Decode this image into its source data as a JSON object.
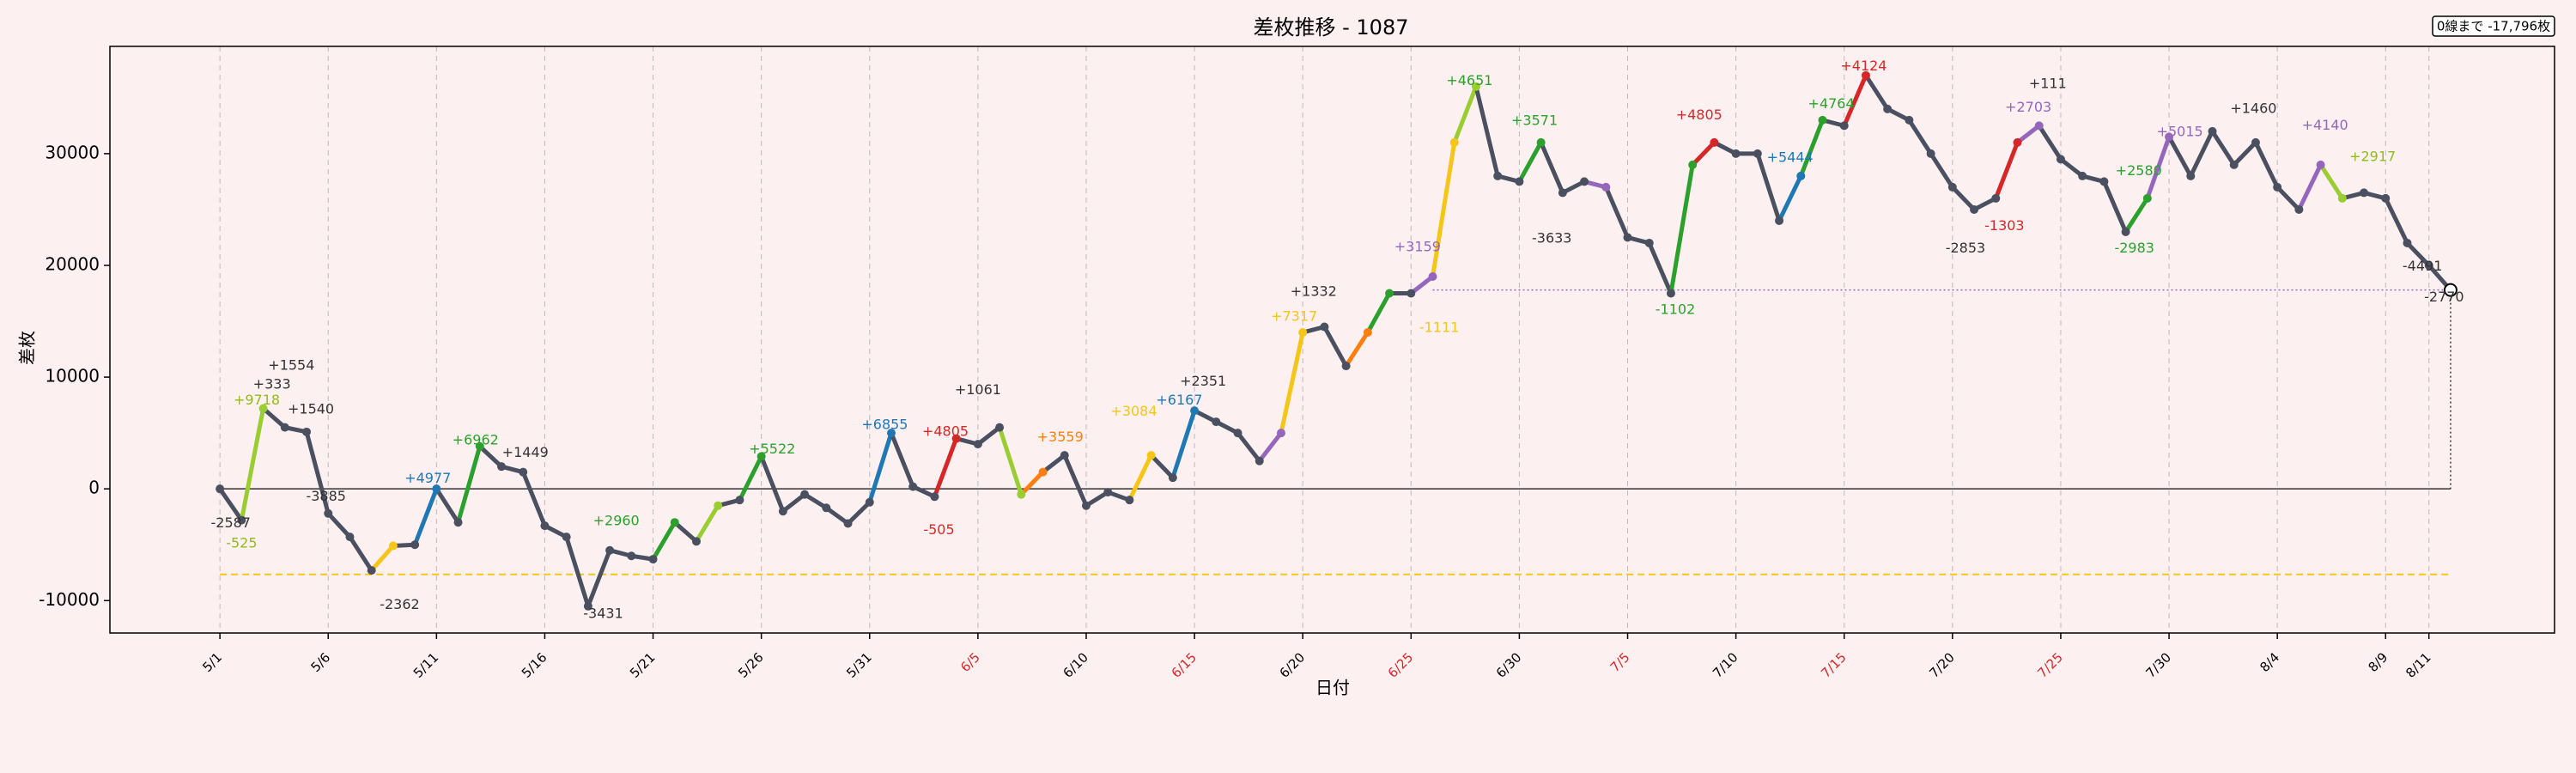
{
  "chart_data": {
    "type": "line",
    "title": "差枚推移 - 1087",
    "xlabel": "日付",
    "ylabel": "差枚",
    "info_box": "0線まで -17,796枚",
    "line_color": "#4a5060",
    "x": [
      0,
      1,
      2,
      3,
      4,
      5,
      6,
      7,
      8,
      9,
      10,
      11,
      12,
      13,
      14,
      15,
      16,
      17,
      18,
      19,
      20,
      21,
      22,
      23,
      24,
      25,
      26,
      27,
      28,
      29,
      30,
      31,
      32,
      33,
      34,
      35,
      36,
      37,
      38,
      39,
      40,
      41,
      42,
      43,
      44,
      45,
      46,
      47,
      48,
      49,
      50,
      51,
      52,
      53,
      54,
      55,
      56,
      57,
      58,
      59,
      60,
      61,
      62,
      63,
      64,
      65,
      66,
      67,
      68,
      69,
      70,
      71,
      72,
      73,
      74,
      75,
      76,
      77,
      78,
      79,
      80,
      81,
      82,
      83,
      84,
      85,
      86,
      87,
      88,
      89,
      90,
      91,
      92,
      93,
      94,
      95,
      96,
      97,
      98,
      99,
      100,
      101,
      102,
      103
    ],
    "values": [
      0,
      -2800,
      7200,
      5500,
      5100,
      -2200,
      -4300,
      -7300,
      -5100,
      -5000,
      0,
      -3000,
      3800,
      2000,
      1500,
      -3300,
      -4300,
      -10500,
      -5500,
      -6000,
      -6300,
      -3000,
      -4700,
      -1500,
      -1000,
      2900,
      -2000,
      -500,
      -1700,
      -3100,
      -1200,
      5000,
      200,
      -700,
      4500,
      4000,
      5500,
      -500,
      1500,
      3000,
      -1500,
      -300,
      -1000,
      3000,
      1000,
      7000,
      6000,
      5000,
      2500,
      5000,
      14000,
      14500,
      11000,
      14000,
      17500,
      17500,
      19000,
      31000,
      36000,
      28000,
      27500,
      31000,
      26500,
      27500,
      27000,
      22500,
      22000,
      17500,
      29000,
      31000,
      30000,
      30000,
      24000,
      28000,
      33000,
      32500,
      37000,
      34000,
      33000,
      30000,
      27000,
      25000,
      26000,
      31000,
      32500,
      29500,
      28000,
      27500,
      23000,
      26000,
      31500,
      28000,
      32000,
      29000,
      31000,
      27000,
      25000,
      29000,
      26000,
      26500,
      26000,
      22000,
      20000,
      17800
    ],
    "segment_colors": [
      null,
      null,
      "#9acd32",
      null,
      null,
      null,
      null,
      null,
      "#f5c518",
      null,
      "#1f77b4",
      null,
      "#2ca02c",
      null,
      null,
      null,
      null,
      null,
      null,
      null,
      null,
      "#2ca02c",
      null,
      "#9acd32",
      null,
      "#2ca02c",
      null,
      null,
      null,
      null,
      null,
      "#1f77b4",
      null,
      null,
      "#d62728",
      null,
      null,
      "#9acd32",
      "#ff7f0e",
      null,
      null,
      null,
      null,
      "#f5c518",
      null,
      "#1f77b4",
      null,
      null,
      null,
      "#9467bd",
      "#f5c518",
      null,
      null,
      "#ff7f0e",
      "#2ca02c",
      null,
      "#9467bd",
      "#f5c518",
      "#9acd32",
      null,
      null,
      "#2ca02c",
      null,
      null,
      "#9467bd",
      null,
      null,
      null,
      "#2ca02c",
      "#d62728",
      null,
      null,
      null,
      "#1f77b4",
      "#2ca02c",
      null,
      "#d62728",
      null,
      null,
      null,
      null,
      null,
      null,
      "#d62728",
      "#9467bd",
      null,
      null,
      null,
      null,
      "#2ca02c",
      "#9467bd",
      null,
      null,
      null,
      null,
      null,
      null,
      "#9467bd",
      "#9acd32",
      null,
      null,
      null,
      null,
      null
    ],
    "xlim": [
      -5.08,
      107.8
    ],
    "xticks": [
      {
        "value": 0,
        "label": "5/1"
      },
      {
        "value": 5,
        "label": "5/6"
      },
      {
        "value": 10,
        "label": "5/11"
      },
      {
        "value": 15,
        "label": "5/16"
      },
      {
        "value": 20,
        "label": "5/21"
      },
      {
        "value": 25,
        "label": "5/26"
      },
      {
        "value": 30,
        "label": "5/31"
      },
      {
        "value": 35,
        "label": "6/5"
      },
      {
        "value": 40,
        "label": "6/10"
      },
      {
        "value": 45,
        "label": "6/15"
      },
      {
        "value": 50,
        "label": "6/20"
      },
      {
        "value": 55,
        "label": "6/25"
      },
      {
        "value": 60,
        "label": "6/30"
      },
      {
        "value": 65,
        "label": "7/5"
      },
      {
        "value": 70,
        "label": "7/10"
      },
      {
        "value": 75,
        "label": "7/15"
      },
      {
        "value": 80,
        "label": "7/20"
      },
      {
        "value": 85,
        "label": "7/25"
      },
      {
        "value": 90,
        "label": "7/30"
      },
      {
        "value": 95,
        "label": "8/4"
      },
      {
        "value": 100,
        "label": "8/9"
      },
      {
        "value": 102,
        "label": "8/11"
      }
    ],
    "xtick_label_colors": [
      "#000",
      "#000",
      "#000",
      "#000",
      "#000",
      "#000",
      "#000",
      "#d62728",
      "#000",
      "#d62728",
      "#000",
      "#d62728",
      "#000",
      "#d62728",
      "#000",
      "#d62728",
      "#000",
      "#d62728",
      "#000",
      "#000",
      "#000",
      "#000"
    ],
    "ylim": [
      -12900,
      39600
    ],
    "yticks": [
      -10000,
      0,
      10000,
      20000,
      30000
    ],
    "zero_line": true,
    "min_line": {
      "value": -7650,
      "color": "#f5c518"
    },
    "final_line_color": "#9467bd",
    "annotations": [
      {
        "text": "+1554",
        "x": 3.3,
        "y": 11000,
        "color": "#333"
      },
      {
        "text": "+333",
        "x": 2.4,
        "y": 9300,
        "color": "#333"
      },
      {
        "text": "+9718",
        "x": 1.7,
        "y": 7900,
        "color": "#8fbc1a"
      },
      {
        "text": "-2587",
        "x": 0.5,
        "y": -3100,
        "color": "#333"
      },
      {
        "text": "-525",
        "x": 1,
        "y": -4900,
        "color": "#8fbc1a"
      },
      {
        "text": "+1540",
        "x": 4.2,
        "y": 7100,
        "color": "#333"
      },
      {
        "text": "-3885",
        "x": 4.9,
        "y": -700,
        "color": "#333"
      },
      {
        "text": "+4977",
        "x": 9.6,
        "y": 900,
        "color": "#1f77b4"
      },
      {
        "text": "+6962",
        "x": 11.8,
        "y": 4300,
        "color": "#2ca02c"
      },
      {
        "text": "-2362",
        "x": 8.3,
        "y": -10400,
        "color": "#333"
      },
      {
        "text": "+1449",
        "x": 14.1,
        "y": 3200,
        "color": "#333"
      },
      {
        "text": "-3431",
        "x": 17.7,
        "y": -11200,
        "color": "#333"
      },
      {
        "text": "+2960",
        "x": 18.3,
        "y": -2900,
        "color": "#2ca02c"
      },
      {
        "text": "+5522",
        "x": 25.5,
        "y": 3500,
        "color": "#2ca02c"
      },
      {
        "text": "+6855",
        "x": 30.7,
        "y": 5700,
        "color": "#1f77b4"
      },
      {
        "text": "+4805",
        "x": 33.5,
        "y": 5100,
        "color": "#d62728"
      },
      {
        "text": "-505",
        "x": 33.2,
        "y": -3700,
        "color": "#d62728"
      },
      {
        "text": "+1061",
        "x": 35,
        "y": 8800,
        "color": "#333"
      },
      {
        "text": "+3559",
        "x": 38.8,
        "y": 4600,
        "color": "#ff7f0e"
      },
      {
        "text": "+3084",
        "x": 42.2,
        "y": 6900,
        "color": "#f5c518"
      },
      {
        "text": "+6167",
        "x": 44.3,
        "y": 7900,
        "color": "#1f77b4"
      },
      {
        "text": "+2351",
        "x": 45.4,
        "y": 9600,
        "color": "#333"
      },
      {
        "text": "+1332",
        "x": 50.5,
        "y": 17600,
        "color": "#333"
      },
      {
        "text": "+7317",
        "x": 49.6,
        "y": 15400,
        "color": "#f5c518"
      },
      {
        "text": "+3159",
        "x": 55.3,
        "y": 21600,
        "color": "#9467bd"
      },
      {
        "text": "+4651",
        "x": 57.7,
        "y": 36500,
        "color": "#2ca02c"
      },
      {
        "text": "-1111",
        "x": 56.3,
        "y": 14400,
        "color": "#f5c518"
      },
      {
        "text": "+3571",
        "x": 60.7,
        "y": 32900,
        "color": "#2ca02c"
      },
      {
        "text": "-3633",
        "x": 61.5,
        "y": 22400,
        "color": "#333"
      },
      {
        "text": "+4805",
        "x": 68.3,
        "y": 33400,
        "color": "#d62728"
      },
      {
        "text": "-1102",
        "x": 67.2,
        "y": 16000,
        "color": "#2ca02c"
      },
      {
        "text": "+5444",
        "x": 72.5,
        "y": 29600,
        "color": "#1f77b4"
      },
      {
        "text": "+4764",
        "x": 74.4,
        "y": 34400,
        "color": "#2ca02c"
      },
      {
        "text": "+4124",
        "x": 75.9,
        "y": 37800,
        "color": "#d62728"
      },
      {
        "text": "-2853",
        "x": 80.6,
        "y": 21500,
        "color": "#333"
      },
      {
        "text": "+2703",
        "x": 83.5,
        "y": 34100,
        "color": "#9467bd"
      },
      {
        "text": "+111",
        "x": 84.4,
        "y": 36200,
        "color": "#333"
      },
      {
        "text": "-1303",
        "x": 82.4,
        "y": 23500,
        "color": "#d62728"
      },
      {
        "text": "+2580",
        "x": 88.6,
        "y": 28400,
        "color": "#2ca02c"
      },
      {
        "text": "-2983",
        "x": 88.4,
        "y": 21500,
        "color": "#2ca02c"
      },
      {
        "text": "+5015",
        "x": 90.5,
        "y": 31900,
        "color": "#9467bd"
      },
      {
        "text": "+1460",
        "x": 93.9,
        "y": 34000,
        "color": "#333"
      },
      {
        "text": "+4140",
        "x": 97.2,
        "y": 32500,
        "color": "#9467bd"
      },
      {
        "text": "+2917",
        "x": 99.4,
        "y": 29700,
        "color": "#8fbc1a"
      },
      {
        "text": "-4491",
        "x": 101.7,
        "y": 19900,
        "color": "#333"
      },
      {
        "text": "-2770",
        "x": 102.7,
        "y": 17100,
        "color": "#333"
      }
    ]
  }
}
